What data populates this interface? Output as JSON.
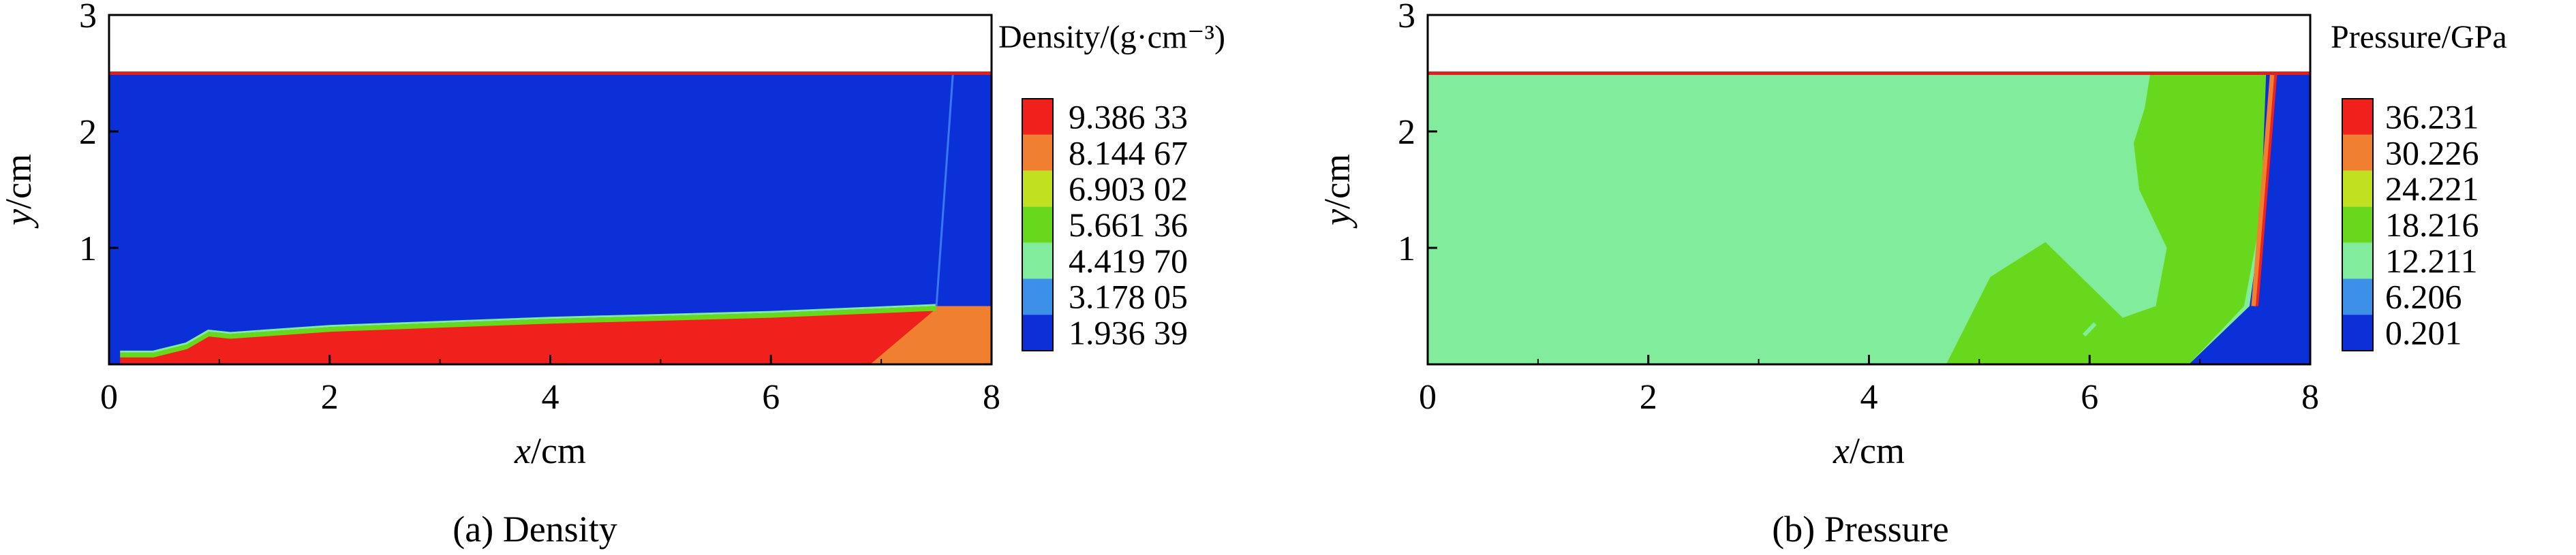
{
  "chart_data": [
    {
      "type": "heatmap",
      "panel": "(a) Density",
      "caption": "(a) Density",
      "xlabel": {
        "var": "x",
        "unit": "/cm"
      },
      "ylabel": {
        "var": "y",
        "unit": "/cm"
      },
      "xlim": [
        0,
        8
      ],
      "ylim": [
        0,
        3
      ],
      "xticks": [
        "0",
        "2",
        "4",
        "6",
        "8"
      ],
      "yticks": [
        "1",
        "2",
        "3"
      ],
      "colorbar": {
        "title": "Density/(g·cm⁻³)",
        "levels": [
          "9.386 33",
          "8.144 67",
          "6.903 02",
          "5.661 36",
          "4.419 70",
          "3.178 05",
          "1.936 39"
        ],
        "colors": [
          "#f0201c",
          "#f08030",
          "#c0e020",
          "#68d81c",
          "#80ec9c",
          "#3c90e8",
          "#0c30d8"
        ]
      },
      "fields": {
        "domain_top_y": 2.5,
        "background_value": "1.936 39",
        "jet_layer": {
          "value": "9.386 33",
          "upper_boundary": [
            [
              0.1,
              0.08
            ],
            [
              0.4,
              0.08
            ],
            [
              0.7,
              0.15
            ],
            [
              0.9,
              0.26
            ],
            [
              1.1,
              0.24
            ],
            [
              2.0,
              0.3
            ],
            [
              4.0,
              0.37
            ],
            [
              6.0,
              0.42
            ],
            [
              7.5,
              0.48
            ]
          ]
        },
        "compressed_region": {
          "value": "8.144 67",
          "x_range": [
            6.9,
            8.0
          ],
          "y_top": 0.5
        },
        "shock_front": {
          "x_top": 7.65,
          "x_bottom": 7.5
        }
      }
    },
    {
      "type": "heatmap",
      "panel": "(b) Pressure",
      "caption": "(b) Pressure",
      "xlabel": {
        "var": "x",
        "unit": "/cm"
      },
      "ylabel": {
        "var": "y",
        "unit": "/cm"
      },
      "xlim": [
        0,
        8
      ],
      "ylim": [
        0,
        3
      ],
      "xticks": [
        "0",
        "2",
        "4",
        "6",
        "8"
      ],
      "yticks": [
        "1",
        "2",
        "3"
      ],
      "colorbar": {
        "title": "Pressure/GPa",
        "levels": [
          "36.231",
          "30.226",
          "24.221",
          "18.216",
          "12.211",
          "6.206",
          "0.201"
        ],
        "colors": [
          "#f0201c",
          "#f08030",
          "#c0e020",
          "#68d81c",
          "#80ec9c",
          "#3c90e8",
          "#0c30d8"
        ]
      },
      "fields": {
        "domain_top_y": 2.5,
        "background_value": "12.211",
        "high_pressure_zone": {
          "value": "18.216",
          "boundary": [
            [
              6.55,
              2.5
            ],
            [
              6.5,
              2.2
            ],
            [
              6.4,
              1.9
            ],
            [
              6.45,
              1.5
            ],
            [
              6.7,
              1.0
            ],
            [
              6.6,
              0.5
            ],
            [
              6.3,
              0.4
            ],
            [
              5.6,
              1.05
            ],
            [
              5.1,
              0.75
            ],
            [
              4.7,
              0.0
            ],
            [
              6.9,
              0.0
            ],
            [
              7.4,
              0.5
            ],
            [
              7.6,
              1.5
            ],
            [
              7.65,
              2.5
            ]
          ]
        },
        "unloaded_corner": {
          "value": "0.201",
          "points": [
            [
              6.9,
              0.0
            ],
            [
              7.45,
              0.5
            ],
            [
              7.55,
              1.2
            ],
            [
              7.6,
              2.5
            ],
            [
              8.0,
              2.5
            ],
            [
              8.0,
              0.0
            ]
          ]
        },
        "shock_front": {
          "x_top": 7.62,
          "x_bottom": 7.45
        }
      }
    }
  ]
}
